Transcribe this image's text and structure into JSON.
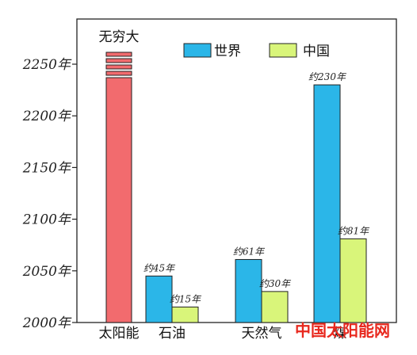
{
  "chart_data": {
    "type": "bar",
    "y_unit": "年",
    "ylim": [
      2000,
      2300
    ],
    "yticks": [
      2000,
      2050,
      2100,
      2150,
      2200,
      2250
    ],
    "categories": [
      "太阳能",
      "石油",
      "天然气",
      "煤"
    ],
    "series": [
      {
        "name": "世界",
        "color": "#2bb6e8",
        "values": [
          null,
          2045,
          2061,
          2230
        ],
        "labels": [
          "",
          "约45年",
          "约61年",
          "约230年"
        ]
      },
      {
        "name": "中国",
        "color": "#d9f57a",
        "values": [
          null,
          2015,
          2030,
          2081
        ],
        "labels": [
          "",
          "约15年",
          "约30年",
          "约81年"
        ]
      }
    ],
    "special_bar": {
      "category": "太阳能",
      "label": "无穷大",
      "color": "#f26b6e"
    },
    "legend_position": "top",
    "grid": false
  },
  "watermark": "中国太阳能网"
}
